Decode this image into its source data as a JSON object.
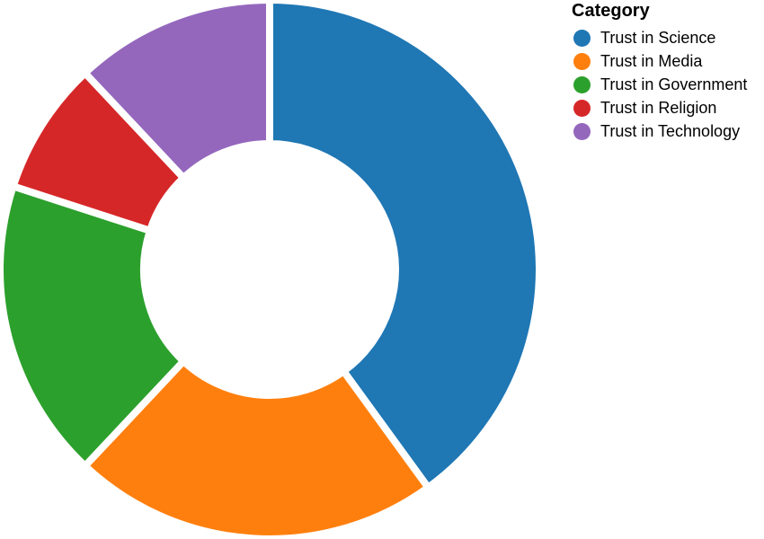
{
  "chart_data": {
    "type": "pie",
    "variant": "donut",
    "legend": {
      "title": "Category",
      "placement": "top-right"
    },
    "slices": [
      {
        "label": "Trust in Science",
        "value": 40,
        "color": "#1f77b4"
      },
      {
        "label": "Trust in Media",
        "value": 22,
        "color": "#ff7f0e"
      },
      {
        "label": "Trust in Government",
        "value": 18,
        "color": "#2ca02c"
      },
      {
        "label": "Trust in Religion",
        "value": 8,
        "color": "#d62728"
      },
      {
        "label": "Trust in Technology",
        "value": 12,
        "color": "#9467bd"
      }
    ]
  }
}
